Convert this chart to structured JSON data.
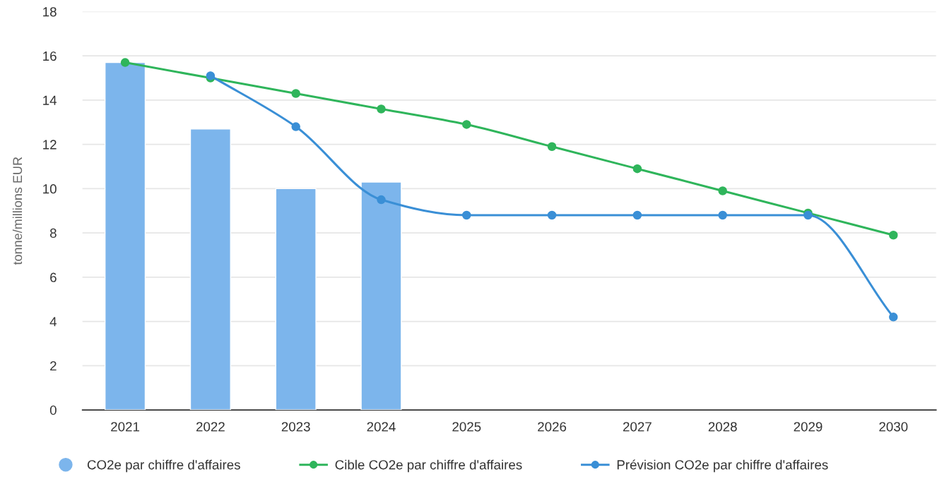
{
  "chart_data": {
    "type": "bar",
    "ylabel": "tonne/millions EUR",
    "categories": [
      "2021",
      "2022",
      "2023",
      "2024",
      "2025",
      "2026",
      "2027",
      "2028",
      "2029",
      "2030"
    ],
    "series": [
      {
        "name": "CO2e par chiffre d'affaires",
        "color": "#7cb5ec",
        "values": [
          15.7,
          12.7,
          10.0,
          10.3,
          null,
          null,
          null,
          null,
          null,
          null
        ]
      },
      {
        "name": "Cible CO2e par chiffre d'affaires",
        "type": "line",
        "color": "#2fb55b",
        "values": [
          15.7,
          15.0,
          14.3,
          13.6,
          12.9,
          11.9,
          10.9,
          9.9,
          8.9,
          7.9
        ]
      },
      {
        "name": "Prévision CO2e par chiffre d'affaires",
        "type": "line",
        "color": "#3a8fd6",
        "values": [
          null,
          15.1,
          12.8,
          9.5,
          8.8,
          8.8,
          8.8,
          8.8,
          8.8,
          4.2
        ]
      }
    ],
    "ylim": [
      0,
      18
    ],
    "yticks": [
      0,
      2,
      4,
      6,
      8,
      10,
      12,
      14,
      16,
      18
    ],
    "grid": "y",
    "legend": "bottom",
    "marker": "circle",
    "line_style": "solid"
  }
}
